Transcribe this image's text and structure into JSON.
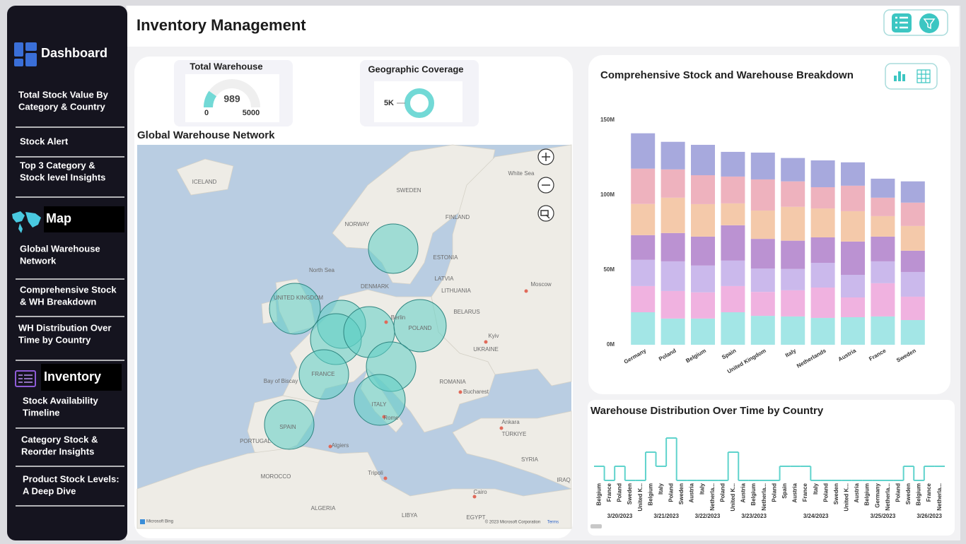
{
  "header": {
    "title": "Inventory Management"
  },
  "sidebar": {
    "sections": [
      {
        "heading": "Dashboard",
        "items": [
          [
            "Total Stock Value By",
            "Category & Country"
          ],
          [
            "Stock Alert"
          ],
          [
            "Top 3 Category &",
            "Stock level Insights"
          ]
        ]
      },
      {
        "heading": "Map",
        "items": [
          [
            "Global Warehouse",
            "Network"
          ],
          [
            "Comprehensive Stock",
            "& WH Breakdown"
          ],
          [
            "WH Distribution Over",
            "Time by Country"
          ]
        ]
      },
      {
        "heading": "Inventory",
        "items": [
          [
            "Stock Availability",
            "Timeline"
          ],
          [
            "Category Stock &",
            "Reorder Insights"
          ],
          [
            "Product Stock Levels:",
            "A Deep Dive"
          ]
        ]
      }
    ]
  },
  "kpis": {
    "total_warehouse": {
      "title": "Total Warehouse",
      "value": 989,
      "min": 0,
      "max": 5000
    },
    "geographic_coverage": {
      "title": "Geographic Coverage",
      "value_label": "5K"
    }
  },
  "map": {
    "title": "Global Warehouse Network",
    "labels": [
      "ICELAND",
      "SWEDEN",
      "FINLAND",
      "NORWAY",
      "North Sea",
      "UNITED KINGDOM",
      "DENMARK",
      "Berlin",
      "POLAND",
      "BELARUS",
      "Moscow",
      "Kyiv",
      "UKRAINE",
      "FRANCE",
      "Bay of Biscay",
      "ROMANIA",
      "Bucharest",
      "SPAIN",
      "PORTUGAL",
      "ITALY",
      "Rome",
      "Algiers",
      "Tripoli",
      "MOROCCO",
      "ALGERIA",
      "LIBYA",
      "Cairo",
      "EGYPT",
      "Ankara",
      "TÜRKIYE",
      "SYRIA",
      "IRAQ",
      "White Sea",
      "ESTONIA",
      "LATVIA",
      "LITHUANIA"
    ],
    "attribution": [
      "Microsoft Bing",
      "© 2023 Microsoft Corporation",
      "Terms"
    ]
  },
  "chart_data": [
    {
      "type": "bar",
      "stacked": true,
      "title": "Comprehensive Stock and Warehouse Breakdown",
      "categories": [
        "Germany",
        "Poland",
        "Belgium",
        "Spain",
        "United Kingdom",
        "Italy",
        "Netherlands",
        "Austria",
        "France",
        "Sweden"
      ],
      "series": [
        {
          "color": "#a3e6e6",
          "values": [
            21.7,
            17.5,
            17.5,
            21.7,
            19.3,
            18.9,
            17.9,
            18.4,
            18.9,
            16.5
          ]
        },
        {
          "color": "#f0b2e0",
          "values": [
            17.5,
            18.4,
            17.5,
            17.5,
            16.0,
            17.5,
            20.3,
            13.2,
            22.2,
            15.6
          ]
        },
        {
          "color": "#cbb9ec",
          "values": [
            17.5,
            19.8,
            17.9,
            17.0,
            15.6,
            14.2,
            16.5,
            15.1,
            14.6,
            16.5
          ]
        },
        {
          "color": "#bb92d2",
          "values": [
            16.5,
            18.9,
            19.3,
            23.6,
            19.8,
            18.9,
            17.0,
            22.2,
            16.5,
            14.2
          ]
        },
        {
          "color": "#f4c9aa",
          "values": [
            20.8,
            23.6,
            21.7,
            14.6,
            18.9,
            22.6,
            19.3,
            20.3,
            13.7,
            16.5
          ]
        },
        {
          "color": "#eeb2be",
          "values": [
            23.6,
            18.9,
            19.3,
            17.9,
            20.8,
            17.0,
            14.2,
            17.0,
            12.3,
            15.6
          ]
        },
        {
          "color": "#a7a9dd",
          "values": [
            23.6,
            18.4,
            20.3,
            16.5,
            17.9,
            15.6,
            17.9,
            15.6,
            12.7,
            14.2
          ]
        }
      ],
      "ylim": [
        0,
        150
      ],
      "yticks": [
        {
          "value": 0,
          "label": "0M"
        },
        {
          "value": 50,
          "label": "50M"
        },
        {
          "value": 100,
          "label": "100M"
        },
        {
          "value": 150,
          "label": "150M"
        }
      ]
    },
    {
      "type": "step-line",
      "title": "Warehouse Distribution Over Time by Country",
      "color": "#5fd3cc",
      "groups": [
        {
          "label": "3/20/2023",
          "categories": [
            "Belgium",
            "France",
            "Poland",
            "Sweden",
            "United K..."
          ],
          "values": [
            1,
            0,
            1,
            0,
            0
          ]
        },
        {
          "label": "3/21/2023",
          "categories": [
            "Belgium",
            "Italy",
            "Poland",
            "Sweden"
          ],
          "values": [
            2,
            1,
            3,
            0
          ]
        },
        {
          "label": "3/22/2023",
          "categories": [
            "Austria",
            "Italy",
            "Netherla...",
            "Poland"
          ],
          "values": [
            0,
            0,
            0,
            0
          ]
        },
        {
          "label": "3/23/2023",
          "categories": [
            "United K...",
            "Austria",
            "Belgium",
            "Netherla...",
            "Poland"
          ],
          "values": [
            2,
            0,
            0,
            0,
            0
          ]
        },
        {
          "label": "3/24/2023",
          "categories": [
            "Spain",
            "Austria",
            "France",
            "Italy",
            "Poland",
            "Sweden",
            "United K..."
          ],
          "values": [
            1,
            1,
            1,
            0,
            0,
            0,
            0
          ]
        },
        {
          "label": "3/25/2023",
          "categories": [
            "Austria",
            "Belgium",
            "Germany",
            "Netherla...",
            "Poland",
            "Sweden"
          ],
          "values": [
            0,
            0,
            0,
            0,
            0,
            1
          ]
        },
        {
          "label": "3/26/2023",
          "categories": [
            "Belgium",
            "France",
            "Netherla..."
          ],
          "values": [
            0,
            1,
            1
          ]
        }
      ]
    }
  ]
}
